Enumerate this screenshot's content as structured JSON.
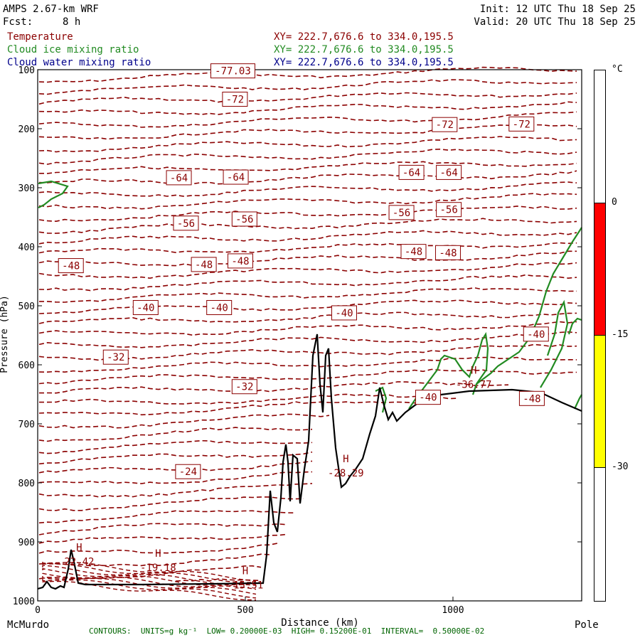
{
  "header": {
    "title": "AMPS 2.67-km WRF",
    "fcst_label": "Fcst:",
    "fcst_value": "8 h",
    "init": "Init: 12 UTC Thu 18 Sep 25",
    "valid": "Valid: 20 UTC Thu 18 Sep 25"
  },
  "fields": [
    {
      "name": "Temperature",
      "color": "#8b0000",
      "xy": "XY= 222.7,676.6 to 334.0,195.5"
    },
    {
      "name": "Cloud ice mixing ratio",
      "color": "#228b22",
      "xy": "XY= 222.7,676.6 to 334.0,195.5"
    },
    {
      "name": "Cloud water mixing ratio",
      "color": "#00008b",
      "xy": "XY= 222.7,676.6 to 334.0,195.5"
    }
  ],
  "axis": {
    "xlabel": "Distance (km)",
    "ylabel": "Pressure (hPa)",
    "start_label": "McMurdo",
    "end_label": "Pole"
  },
  "footer": "CONTOURS:  UNITS=g kg⁻¹  LOW= 0.20000E-03  HIGH= 0.15200E-01  INTERVAL=  0.50000E-02",
  "colorbar": {
    "unit": "°C",
    "ticks": [
      "0",
      "-15",
      "-30"
    ],
    "bands": [
      {
        "from": null,
        "to": "0",
        "color": "#ffffff"
      },
      {
        "from": "0",
        "to": "-15",
        "color": "#ff0000"
      },
      {
        "from": "-15",
        "to": "-30",
        "color": "#ffff00"
      },
      {
        "from": "-30",
        "to": null,
        "color": "#ffffff"
      }
    ]
  },
  "chart_data": {
    "type": "cross-section contour",
    "x_ticks": [
      0,
      500,
      1000
    ],
    "y_ticks": [
      100,
      200,
      300,
      400,
      500,
      600,
      700,
      800,
      900,
      1000
    ],
    "xlim": [
      0,
      1310
    ],
    "ylim": [
      1000,
      100
    ],
    "temperature_labels": [
      {
        "x": 470,
        "p": 102,
        "text": "-77.03"
      },
      {
        "x": 475,
        "p": 150,
        "text": "-72"
      },
      {
        "x": 980,
        "p": 193,
        "text": "-72"
      },
      {
        "x": 1165,
        "p": 192,
        "text": "-72"
      },
      {
        "x": 340,
        "p": 283,
        "text": "-64"
      },
      {
        "x": 477,
        "p": 282,
        "text": "-64"
      },
      {
        "x": 900,
        "p": 274,
        "text": "-64"
      },
      {
        "x": 990,
        "p": 274,
        "text": "-64"
      },
      {
        "x": 357,
        "p": 360,
        "text": "-56"
      },
      {
        "x": 498,
        "p": 353,
        "text": "-56"
      },
      {
        "x": 876,
        "p": 342,
        "text": "-56"
      },
      {
        "x": 990,
        "p": 337,
        "text": "-56"
      },
      {
        "x": 80,
        "p": 432,
        "text": "-48"
      },
      {
        "x": 400,
        "p": 430,
        "text": "-48"
      },
      {
        "x": 488,
        "p": 424,
        "text": "-48"
      },
      {
        "x": 905,
        "p": 408,
        "text": "-48"
      },
      {
        "x": 988,
        "p": 410,
        "text": "-48"
      },
      {
        "x": 1190,
        "p": 657,
        "text": "-48"
      },
      {
        "x": 260,
        "p": 503,
        "text": "-40"
      },
      {
        "x": 437,
        "p": 503,
        "text": "-40"
      },
      {
        "x": 738,
        "p": 512,
        "text": "-40"
      },
      {
        "x": 1200,
        "p": 548,
        "text": "-40"
      },
      {
        "x": 940,
        "p": 655,
        "text": "-40"
      },
      {
        "x": 188,
        "p": 587,
        "text": "-32"
      },
      {
        "x": 498,
        "p": 637,
        "text": "-32"
      },
      {
        "x": 362,
        "p": 781,
        "text": "-24"
      }
    ],
    "highs": [
      {
        "x": 100,
        "p": 915,
        "value": "22.42"
      },
      {
        "x": 290,
        "p": 925,
        "value": "-19.18"
      },
      {
        "x": 500,
        "p": 955,
        "value": "-15.51"
      },
      {
        "x": 742,
        "p": 765,
        "value": "-28.29"
      },
      {
        "x": 1050,
        "p": 615,
        "value": "-36.77"
      }
    ]
  }
}
